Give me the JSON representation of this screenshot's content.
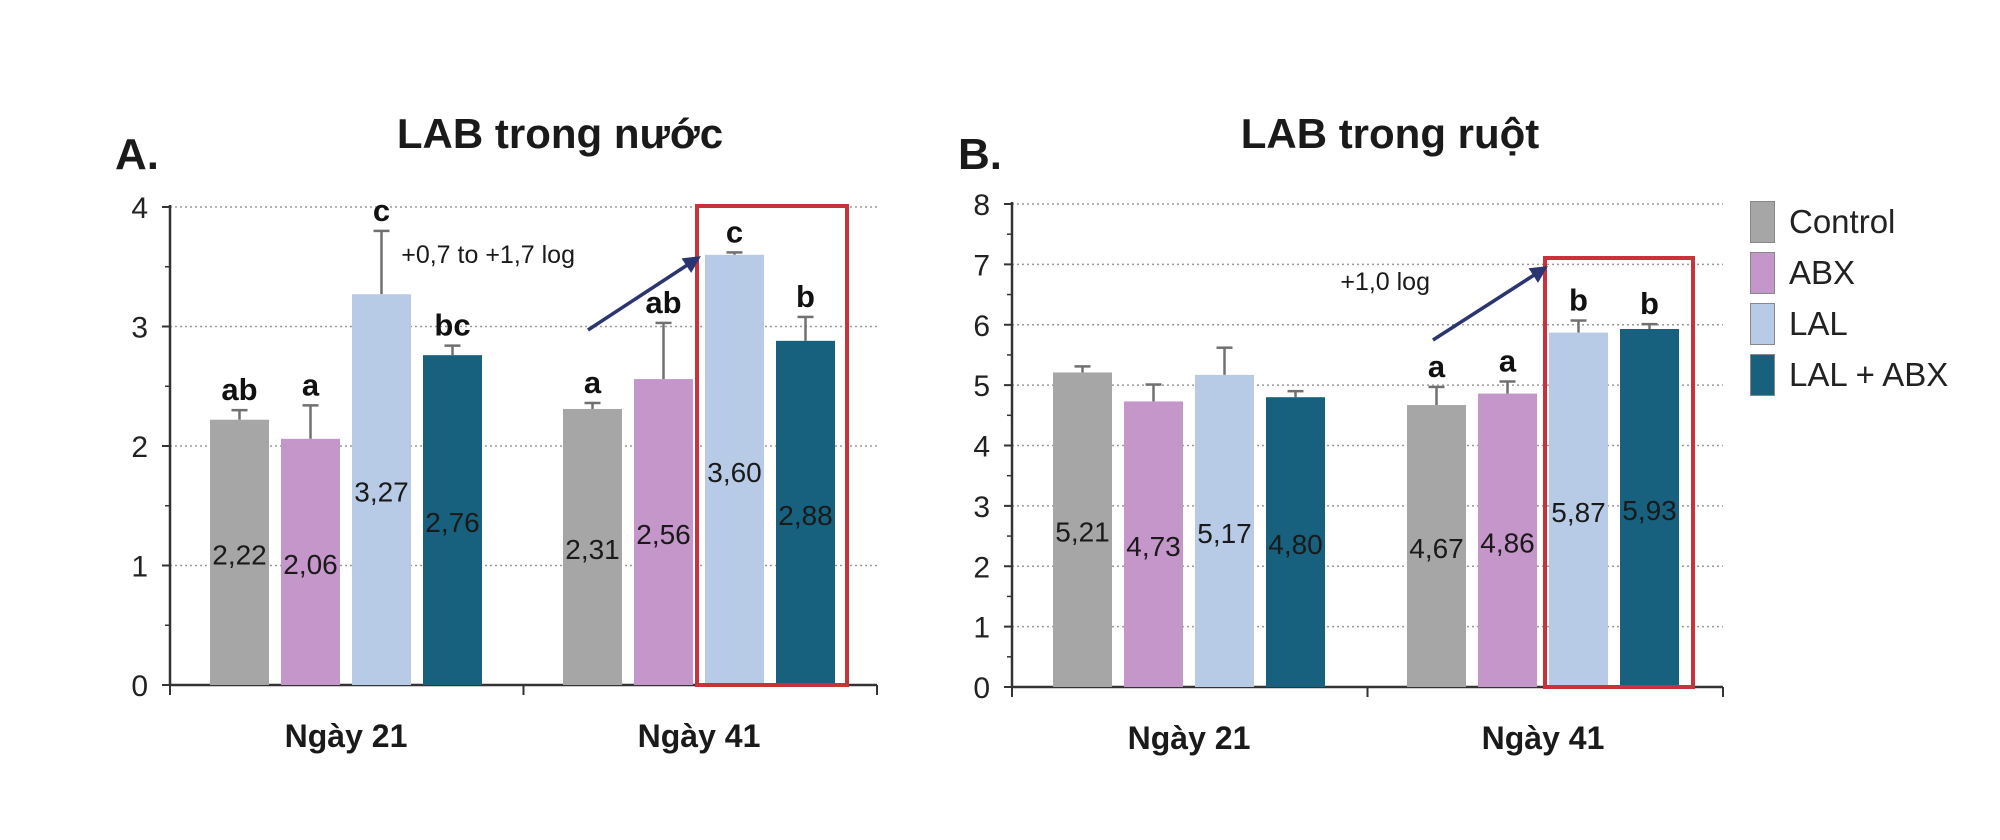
{
  "colors": {
    "Control": "#a6a6a6",
    "ABX": "#c596c9",
    "LAL": "#b7cbe7",
    "LAL + ABX": "#17607e",
    "highlight": "#c8323a",
    "arrow": "#2b3570"
  },
  "legend": {
    "items": [
      {
        "label": "Control",
        "color": "#a6a6a6"
      },
      {
        "label": "ABX",
        "color": "#c596c9"
      },
      {
        "label": "LAL",
        "color": "#b7cbe7"
      },
      {
        "label": "LAL + ABX",
        "color": "#17607e"
      }
    ]
  },
  "chart_data": [
    {
      "panel": "A.",
      "type": "bar",
      "title": "LAB trong nước",
      "categories": [
        "Ngày 21",
        "Ngày 41"
      ],
      "ylim": [
        0,
        4
      ],
      "yticks": [
        0,
        1,
        2,
        3,
        4
      ],
      "grid": true,
      "series": [
        {
          "name": "Control",
          "values": [
            2.22,
            2.31
          ],
          "errors": [
            0.08,
            0.05
          ],
          "value_labels": [
            "2,22",
            "2,31"
          ],
          "letters": [
            "ab",
            "a"
          ]
        },
        {
          "name": "ABX",
          "values": [
            2.06,
            2.56
          ],
          "errors": [
            0.28,
            0.47
          ],
          "value_labels": [
            "2,06",
            "2,56"
          ],
          "letters": [
            "a",
            "ab"
          ]
        },
        {
          "name": "LAL",
          "values": [
            3.27,
            3.6
          ],
          "errors": [
            0.53,
            0.02
          ],
          "value_labels": [
            "3,27",
            "3,60"
          ],
          "letters": [
            "c",
            "c"
          ]
        },
        {
          "name": "LAL + ABX",
          "values": [
            2.76,
            2.88
          ],
          "errors": [
            0.08,
            0.2
          ],
          "value_labels": [
            "2,76",
            "2,88"
          ],
          "letters": [
            "bc",
            "b"
          ]
        }
      ],
      "annotation": "+0,7 to +1,7 log",
      "highlight_category": "Ngày 41",
      "highlight_series": [
        "LAL",
        "LAL + ABX"
      ]
    },
    {
      "panel": "B.",
      "type": "bar",
      "title": "LAB trong ruột",
      "categories": [
        "Ngày 21",
        "Ngày 41"
      ],
      "ylim": [
        0,
        8
      ],
      "yticks": [
        0,
        1,
        2,
        3,
        4,
        5,
        6,
        7,
        8
      ],
      "grid": true,
      "series": [
        {
          "name": "Control",
          "values": [
            5.21,
            4.67
          ],
          "errors": [
            0.1,
            0.3
          ],
          "value_labels": [
            "5,21",
            "4,67"
          ],
          "letters": [
            "",
            "a"
          ]
        },
        {
          "name": "ABX",
          "values": [
            4.73,
            4.86
          ],
          "errors": [
            0.28,
            0.2
          ],
          "value_labels": [
            "4,73",
            "4,86"
          ],
          "letters": [
            "",
            "a"
          ]
        },
        {
          "name": "LAL",
          "values": [
            5.17,
            5.87
          ],
          "errors": [
            0.45,
            0.2
          ],
          "value_labels": [
            "5,17",
            "5,87"
          ],
          "letters": [
            "",
            "b"
          ]
        },
        {
          "name": "LAL + ABX",
          "values": [
            4.8,
            5.93
          ],
          "errors": [
            0.1,
            0.08
          ],
          "value_labels": [
            "4,80",
            "5,93"
          ],
          "letters": [
            "",
            "b"
          ]
        }
      ],
      "annotation": "+1,0 log",
      "highlight_category": "Ngày 41",
      "highlight_series": [
        "LAL",
        "LAL + ABX"
      ]
    }
  ]
}
